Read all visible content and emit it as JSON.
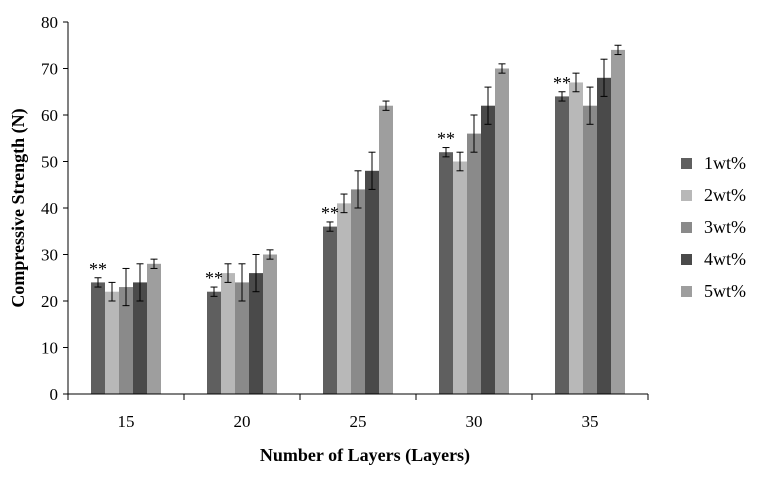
{
  "chart_data": {
    "type": "bar",
    "xlabel": "Number of Layers (Layers)",
    "ylabel": "Compressive Strength (N)",
    "ylim": [
      0,
      80
    ],
    "yticks": [
      0,
      10,
      20,
      30,
      40,
      50,
      60,
      70,
      80
    ],
    "categories": [
      "15",
      "20",
      "25",
      "30",
      "35"
    ],
    "series": [
      {
        "name": "1wt%",
        "color": "#5f5f5f",
        "values": [
          24,
          22,
          36,
          52,
          64
        ],
        "errors": [
          1,
          1,
          1,
          1,
          1
        ]
      },
      {
        "name": "2wt%",
        "color": "#b8b8b8",
        "values": [
          22,
          26,
          41,
          50,
          67
        ],
        "errors": [
          2,
          2,
          2,
          2,
          2
        ]
      },
      {
        "name": "3wt%",
        "color": "#8a8a8a",
        "values": [
          23,
          24,
          44,
          56,
          62
        ],
        "errors": [
          4,
          4,
          4,
          4,
          4
        ]
      },
      {
        "name": "4wt%",
        "color": "#4a4a4a",
        "values": [
          24,
          26,
          48,
          62,
          68
        ],
        "errors": [
          4,
          4,
          4,
          4,
          4
        ]
      },
      {
        "name": "5wt%",
        "color": "#9e9e9e",
        "values": [
          28,
          30,
          62,
          70,
          74
        ],
        "errors": [
          1,
          1,
          1,
          1,
          1
        ]
      }
    ],
    "annotations": [
      "**",
      "**",
      "**",
      "**",
      "**"
    ],
    "legend_position": "right",
    "grid": false
  }
}
